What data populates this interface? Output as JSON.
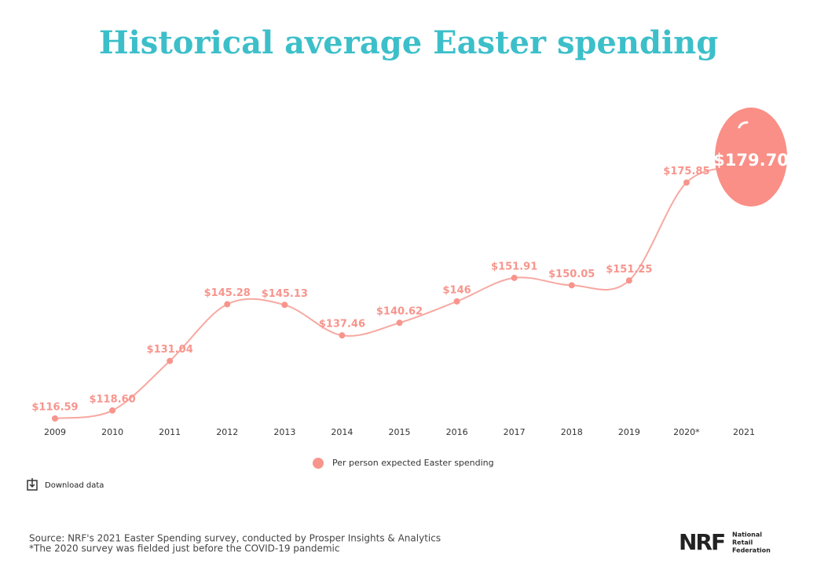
{
  "chart_data": {
    "type": "line",
    "title": "Historical average Easter spending",
    "categories": [
      "2009",
      "2010",
      "2011",
      "2012",
      "2013",
      "2014",
      "2015",
      "2016",
      "2017",
      "2018",
      "2019",
      "2020*",
      "2021"
    ],
    "series": [
      {
        "name": "Per person expected Easter spending",
        "color": "#f7958d",
        "values": [
          116.59,
          118.6,
          131.04,
          145.28,
          145.13,
          137.46,
          140.62,
          146,
          151.91,
          150.05,
          151.25,
          175.85,
          179.7
        ],
        "value_labels": [
          "$116.59",
          "$118.60",
          "$131.04",
          "$145.28",
          "$145.13",
          "$137.46",
          "$140.62",
          "$146",
          "$151.91",
          "$150.05",
          "$151.25",
          "$175.85",
          "$179.70"
        ]
      }
    ]
  },
  "download_label": "Download data",
  "source": "Source: NRF's 2021 Easter Spending survey, conducted by Prosper Insights & Analytics",
  "footnote": "*The 2020 survey was fielded just before the COVID-19 pandemic",
  "logo": {
    "mark": "NRF",
    "name": [
      "National",
      "Retail",
      "Federation"
    ]
  }
}
